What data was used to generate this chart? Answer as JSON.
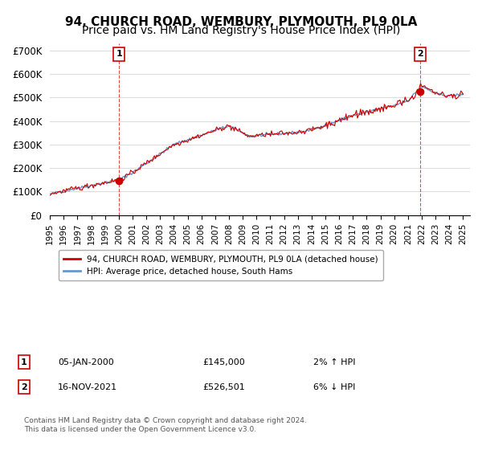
{
  "title": "94, CHURCH ROAD, WEMBURY, PLYMOUTH, PL9 0LA",
  "subtitle": "Price paid vs. HM Land Registry's House Price Index (HPI)",
  "ylabel_ticks": [
    "£0",
    "£100K",
    "£200K",
    "£300K",
    "£400K",
    "£500K",
    "£600K",
    "£700K"
  ],
  "ytick_values": [
    0,
    100000,
    200000,
    300000,
    400000,
    500000,
    600000,
    700000
  ],
  "ylim": [
    0,
    730000
  ],
  "xlim_start": 1995.0,
  "xlim_end": 2025.5,
  "marker1": {
    "year": 2000.02,
    "value": 145000,
    "label": "1"
  },
  "marker2": {
    "year": 2021.88,
    "value": 526501,
    "label": "2"
  },
  "vline1_year": 2000.02,
  "vline2_year": 2021.88,
  "legend_line1": "94, CHURCH ROAD, WEMBURY, PLYMOUTH, PL9 0LA (detached house)",
  "legend_line2": "HPI: Average price, detached house, South Hams",
  "table_row1": [
    "1",
    "05-JAN-2000",
    "£145,000",
    "2% ↑ HPI"
  ],
  "table_row2": [
    "2",
    "16-NOV-2021",
    "£526,501",
    "6% ↓ HPI"
  ],
  "footnote": "Contains HM Land Registry data © Crown copyright and database right 2024.\nThis data is licensed under the Open Government Licence v3.0.",
  "line_color_red": "#cc0000",
  "line_color_blue": "#6699cc",
  "vline_color": "#cc0000",
  "marker_color_red": "#cc0000",
  "grid_color": "#dddddd",
  "background_color": "#ffffff",
  "title_fontsize": 11,
  "subtitle_fontsize": 10
}
